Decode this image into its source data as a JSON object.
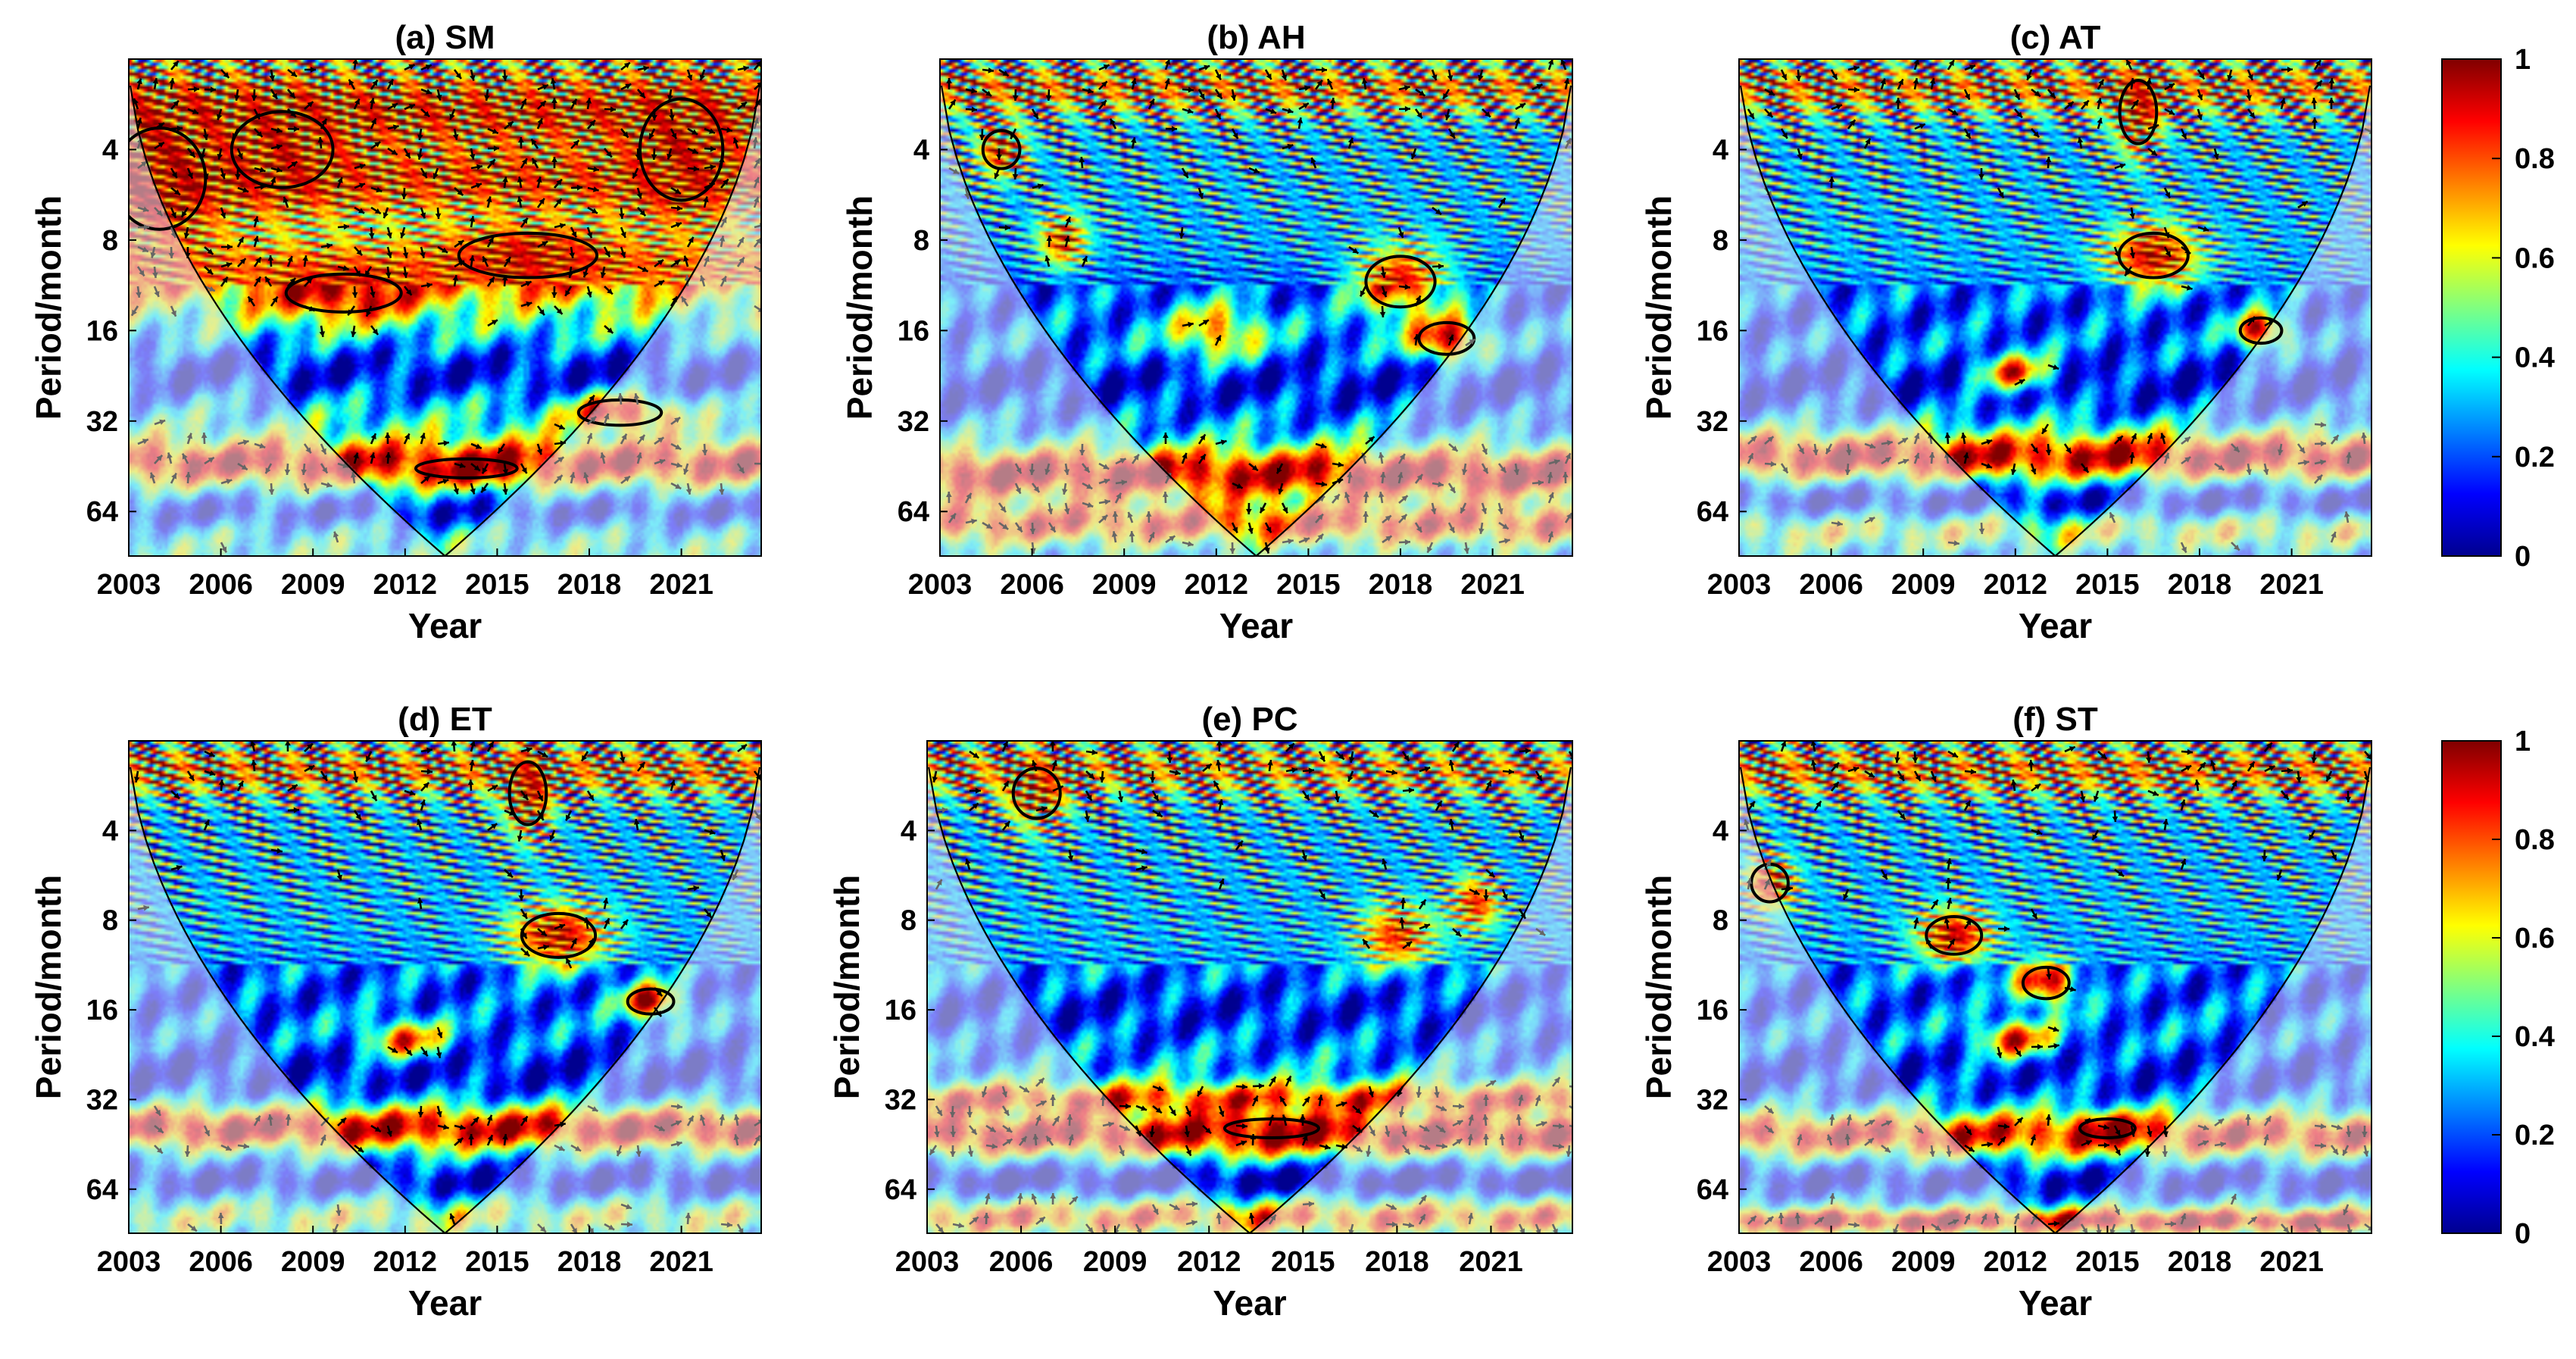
{
  "chart_data": {
    "type": "heatmap",
    "description_kind": "wavelet coherence panels",
    "colorbar": {
      "min": 0,
      "max": 1,
      "ticks": [
        "0",
        "0.2",
        "0.4",
        "0.6",
        "0.8",
        "1"
      ],
      "colormap": "jet",
      "colors": [
        "#00008f",
        "#0000ff",
        "#0080ff",
        "#00ffff",
        "#80ff80",
        "#ffff00",
        "#ff8000",
        "#ff0000",
        "#800000"
      ]
    },
    "x_axis": {
      "label": "Year",
      "range": [
        2003,
        2023.6
      ],
      "ticks": [
        2003,
        2006,
        2009,
        2012,
        2015,
        2018,
        2021
      ],
      "tick_labels": [
        "2003",
        "2006",
        "2009",
        "2012",
        "2015",
        "2018",
        "2021"
      ]
    },
    "y_axis": {
      "label": "Period/month",
      "scale": "log2",
      "range": [
        2,
        90
      ],
      "reversed": true,
      "ticks": [
        4,
        8,
        16,
        32,
        64
      ],
      "tick_labels": [
        "4",
        "8",
        "16",
        "32",
        "64"
      ]
    },
    "cone_of_influence": {
      "bottom_year": 2013.3,
      "bottom_period": 90
    },
    "panels": [
      {
        "id": "a",
        "title": "(a) SM",
        "background": 0.42,
        "bands": [
          {
            "period": 3,
            "value": 0.9,
            "width": 0.5
          },
          {
            "period": 5,
            "value": 0.85,
            "width": 0.45
          },
          {
            "period": 10,
            "value": 0.75,
            "width": 0.4
          },
          {
            "period": 22,
            "value": 0.12,
            "width": 0.35
          },
          {
            "period": 44,
            "value": 0.88,
            "width": 0.25
          },
          {
            "period": 64,
            "value": 0.15,
            "width": 0.2
          }
        ],
        "hotspots": [
          {
            "year": 2004,
            "period": 5,
            "value": 1.0,
            "spread_year": 2.0,
            "spread_oct": 0.8
          },
          {
            "year": 2008,
            "period": 4,
            "value": 0.95,
            "spread_year": 2.2,
            "spread_oct": 0.6
          },
          {
            "year": 2010,
            "period": 12,
            "value": 0.95,
            "spread_year": 2.5,
            "spread_oct": 0.3
          },
          {
            "year": 2016,
            "period": 9,
            "value": 0.92,
            "spread_year": 3.0,
            "spread_oct": 0.35
          },
          {
            "year": 2019,
            "period": 30,
            "value": 0.9,
            "spread_year": 1.8,
            "spread_oct": 0.2
          },
          {
            "year": 2014,
            "period": 46,
            "value": 0.95,
            "spread_year": 2.2,
            "spread_oct": 0.15
          },
          {
            "year": 2021,
            "period": 4,
            "value": 0.95,
            "spread_year": 1.8,
            "spread_oct": 0.8
          }
        ]
      },
      {
        "id": "b",
        "title": "(b) AH",
        "background": 0.3,
        "bands": [
          {
            "period": 2.5,
            "value": 0.75,
            "width": 0.3
          },
          {
            "period": 12,
            "value": 0.2,
            "width": 0.4
          },
          {
            "period": 24,
            "value": 0.12,
            "width": 0.35
          },
          {
            "period": 48,
            "value": 0.92,
            "width": 0.3
          },
          {
            "period": 70,
            "value": 0.8,
            "width": 0.25
          }
        ],
        "hotspots": [
          {
            "year": 2005,
            "period": 4,
            "value": 0.9,
            "spread_year": 0.8,
            "spread_oct": 0.3
          },
          {
            "year": 2007,
            "period": 8,
            "value": 0.85,
            "spread_year": 0.8,
            "spread_oct": 0.3
          },
          {
            "year": 2018,
            "period": 11,
            "value": 0.9,
            "spread_year": 1.5,
            "spread_oct": 0.4
          },
          {
            "year": 2019.5,
            "period": 17,
            "value": 0.95,
            "spread_year": 1.2,
            "spread_oct": 0.25
          },
          {
            "year": 2012,
            "period": 16,
            "value": 0.75,
            "spread_year": 1.5,
            "spread_oct": 0.3
          }
        ]
      },
      {
        "id": "c",
        "title": "(c) AT",
        "background": 0.3,
        "bands": [
          {
            "period": 2.5,
            "value": 0.75,
            "width": 0.3
          },
          {
            "period": 14,
            "value": 0.2,
            "width": 0.4
          },
          {
            "period": 24,
            "value": 0.12,
            "width": 0.35
          },
          {
            "period": 42,
            "value": 0.9,
            "width": 0.28
          },
          {
            "period": 60,
            "value": 0.1,
            "width": 0.2
          },
          {
            "period": 75,
            "value": 0.55,
            "width": 0.2
          }
        ],
        "hotspots": [
          {
            "year": 2016.5,
            "period": 9,
            "value": 0.95,
            "spread_year": 1.5,
            "spread_oct": 0.35
          },
          {
            "year": 2020,
            "period": 16,
            "value": 0.95,
            "spread_year": 0.9,
            "spread_oct": 0.2
          },
          {
            "year": 2016,
            "period": 3,
            "value": 0.95,
            "spread_year": 0.8,
            "spread_oct": 0.5
          },
          {
            "year": 2012,
            "period": 22,
            "value": 0.8,
            "spread_year": 1.2,
            "spread_oct": 0.2
          }
        ]
      },
      {
        "id": "d",
        "title": "(d) ET",
        "background": 0.3,
        "bands": [
          {
            "period": 2.5,
            "value": 0.75,
            "width": 0.3
          },
          {
            "period": 14,
            "value": 0.2,
            "width": 0.4
          },
          {
            "period": 26,
            "value": 0.12,
            "width": 0.35
          },
          {
            "period": 40,
            "value": 0.9,
            "width": 0.25
          },
          {
            "period": 60,
            "value": 0.1,
            "width": 0.2
          },
          {
            "period": 80,
            "value": 0.55,
            "width": 0.2
          }
        ],
        "hotspots": [
          {
            "year": 2017,
            "period": 9,
            "value": 0.95,
            "spread_year": 1.6,
            "spread_oct": 0.35
          },
          {
            "year": 2020,
            "period": 15,
            "value": 0.95,
            "spread_year": 1.0,
            "spread_oct": 0.2
          },
          {
            "year": 2016,
            "period": 3,
            "value": 0.95,
            "spread_year": 0.8,
            "spread_oct": 0.5
          },
          {
            "year": 2012,
            "period": 20,
            "value": 0.8,
            "spread_year": 1.3,
            "spread_oct": 0.2
          }
        ]
      },
      {
        "id": "e",
        "title": "(e) PC",
        "background": 0.3,
        "bands": [
          {
            "period": 2.5,
            "value": 0.7,
            "width": 0.3
          },
          {
            "period": 16,
            "value": 0.15,
            "width": 0.4
          },
          {
            "period": 32,
            "value": 0.8,
            "width": 0.2
          },
          {
            "period": 42,
            "value": 0.9,
            "width": 0.25
          },
          {
            "period": 60,
            "value": 0.05,
            "width": 0.18
          },
          {
            "period": 80,
            "value": 0.75,
            "width": 0.2
          }
        ],
        "hotspots": [
          {
            "year": 2018,
            "period": 9,
            "value": 0.85,
            "spread_year": 1.2,
            "spread_oct": 0.35
          },
          {
            "year": 2020.5,
            "period": 7,
            "value": 0.85,
            "spread_year": 0.8,
            "spread_oct": 0.3
          },
          {
            "year": 2014,
            "period": 40,
            "value": 0.95,
            "spread_year": 2.0,
            "spread_oct": 0.15
          },
          {
            "year": 2006.5,
            "period": 3,
            "value": 0.9,
            "spread_year": 1.0,
            "spread_oct": 0.4
          }
        ]
      },
      {
        "id": "f",
        "title": "(f) ST",
        "background": 0.3,
        "bands": [
          {
            "period": 2.5,
            "value": 0.75,
            "width": 0.3
          },
          {
            "period": 14,
            "value": 0.2,
            "width": 0.4
          },
          {
            "period": 26,
            "value": 0.15,
            "width": 0.35
          },
          {
            "period": 42,
            "value": 0.85,
            "width": 0.25
          },
          {
            "period": 60,
            "value": 0.1,
            "width": 0.18
          },
          {
            "period": 82,
            "value": 0.9,
            "width": 0.15
          }
        ],
        "hotspots": [
          {
            "year": 2010,
            "period": 9,
            "value": 0.95,
            "spread_year": 1.2,
            "spread_oct": 0.3
          },
          {
            "year": 2013,
            "period": 13,
            "value": 0.95,
            "spread_year": 1.0,
            "spread_oct": 0.25
          },
          {
            "year": 2004,
            "period": 6,
            "value": 0.9,
            "spread_year": 0.8,
            "spread_oct": 0.3
          },
          {
            "year": 2012,
            "period": 20,
            "value": 0.85,
            "spread_year": 1.2,
            "spread_oct": 0.2
          },
          {
            "year": 2015,
            "period": 40,
            "value": 0.95,
            "spread_year": 1.2,
            "spread_oct": 0.15
          }
        ]
      }
    ]
  }
}
